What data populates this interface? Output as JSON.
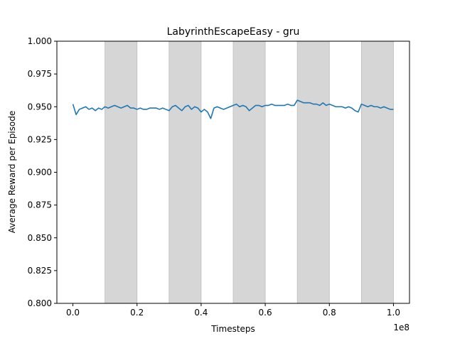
{
  "chart_data": {
    "type": "line",
    "title": "LabyrinthEscapeEasy - gru",
    "xlabel": "Timesteps",
    "ylabel": "Average Reward per Episode",
    "x_scale_label": "1e8",
    "xlim": [
      -0.05,
      1.05
    ],
    "ylim": [
      0.8,
      1.0
    ],
    "x_ticks": [
      0.0,
      0.2,
      0.4,
      0.6,
      0.8,
      1.0
    ],
    "x_tick_labels": [
      "0.0",
      "0.2",
      "0.4",
      "0.6",
      "0.8",
      "1.0"
    ],
    "y_ticks": [
      0.8,
      0.825,
      0.85,
      0.875,
      0.9,
      0.925,
      0.95,
      0.975,
      1.0
    ],
    "y_tick_labels": [
      "0.800",
      "0.825",
      "0.850",
      "0.875",
      "0.900",
      "0.925",
      "0.950",
      "0.975",
      "1.000"
    ],
    "shaded_bands": [
      [
        0.1,
        0.2
      ],
      [
        0.3,
        0.4
      ],
      [
        0.5,
        0.6
      ],
      [
        0.7,
        0.8
      ],
      [
        0.9,
        1.0
      ]
    ],
    "line_color": "#1f77b4",
    "band_color": "#d6d6d6",
    "grid": false,
    "series": [
      {
        "x": [
          0.0,
          0.01,
          0.02,
          0.03,
          0.04,
          0.05,
          0.06,
          0.07,
          0.08,
          0.09,
          0.1,
          0.11,
          0.12,
          0.13,
          0.14,
          0.15,
          0.16,
          0.17,
          0.18,
          0.19,
          0.2,
          0.21,
          0.22,
          0.23,
          0.24,
          0.25,
          0.26,
          0.27,
          0.28,
          0.29,
          0.3,
          0.31,
          0.32,
          0.33,
          0.34,
          0.35,
          0.36,
          0.37,
          0.38,
          0.39,
          0.4,
          0.41,
          0.42,
          0.43,
          0.44,
          0.45,
          0.46,
          0.47,
          0.48,
          0.49,
          0.5,
          0.51,
          0.52,
          0.53,
          0.54,
          0.55,
          0.56,
          0.57,
          0.58,
          0.59,
          0.6,
          0.61,
          0.62,
          0.63,
          0.64,
          0.65,
          0.66,
          0.67,
          0.68,
          0.69,
          0.7,
          0.71,
          0.72,
          0.73,
          0.74,
          0.75,
          0.76,
          0.77,
          0.78,
          0.79,
          0.8,
          0.81,
          0.82,
          0.83,
          0.84,
          0.85,
          0.86,
          0.87,
          0.88,
          0.89,
          0.9,
          0.91,
          0.92,
          0.93,
          0.94,
          0.95,
          0.96,
          0.97,
          0.98,
          0.99,
          1.0
        ],
        "values": [
          0.952,
          0.944,
          0.948,
          0.949,
          0.95,
          0.948,
          0.949,
          0.947,
          0.949,
          0.948,
          0.95,
          0.949,
          0.95,
          0.951,
          0.95,
          0.949,
          0.95,
          0.951,
          0.949,
          0.949,
          0.948,
          0.949,
          0.948,
          0.948,
          0.949,
          0.949,
          0.949,
          0.948,
          0.949,
          0.948,
          0.947,
          0.95,
          0.951,
          0.949,
          0.947,
          0.95,
          0.951,
          0.948,
          0.95,
          0.949,
          0.946,
          0.948,
          0.946,
          0.941,
          0.949,
          0.95,
          0.949,
          0.948,
          0.949,
          0.95,
          0.951,
          0.952,
          0.95,
          0.951,
          0.95,
          0.947,
          0.949,
          0.951,
          0.951,
          0.95,
          0.951,
          0.951,
          0.952,
          0.951,
          0.951,
          0.951,
          0.951,
          0.952,
          0.951,
          0.951,
          0.955,
          0.954,
          0.953,
          0.953,
          0.953,
          0.952,
          0.952,
          0.951,
          0.953,
          0.951,
          0.952,
          0.951,
          0.95,
          0.95,
          0.95,
          0.949,
          0.95,
          0.949,
          0.947,
          0.946,
          0.952,
          0.951,
          0.95,
          0.951,
          0.95,
          0.95,
          0.949,
          0.95,
          0.949,
          0.948,
          0.948
        ]
      }
    ]
  }
}
